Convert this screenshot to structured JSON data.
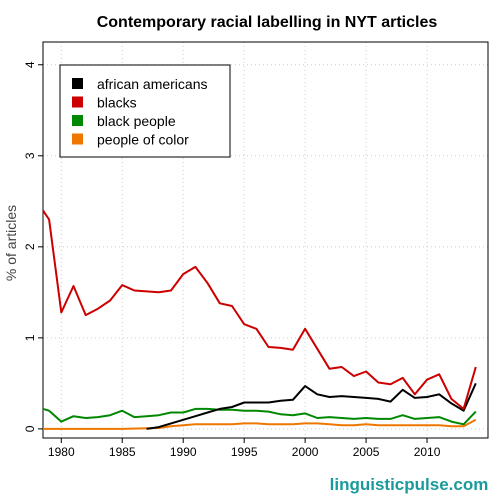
{
  "chart_data": {
    "type": "line",
    "title": "Contemporary racial labelling in NYT articles",
    "ylabel": "% of articles",
    "xlabel": "",
    "xlim": [
      1978.5,
      2015
    ],
    "ylim": [
      -0.1,
      4.25
    ],
    "x_ticks": [
      1980,
      1985,
      1990,
      1995,
      2000,
      2005,
      2010
    ],
    "y_ticks": [
      0,
      1,
      2,
      3,
      4
    ],
    "grid": true,
    "legend_position": "top-left",
    "series": [
      {
        "name": "african americans",
        "color": "#000000",
        "x": [
          1987,
          1988,
          1989,
          1990,
          1991,
          1992,
          1993,
          1994,
          1995,
          1996,
          1997,
          1998,
          1999,
          2000,
          2001,
          2002,
          2003,
          2004,
          2005,
          2006,
          2007,
          2008,
          2009,
          2010,
          2011,
          2012,
          2013,
          2014
        ],
        "y": [
          0.0,
          0.02,
          0.06,
          0.1,
          0.14,
          0.18,
          0.22,
          0.24,
          0.29,
          0.29,
          0.29,
          0.31,
          0.32,
          0.47,
          0.38,
          0.35,
          0.36,
          0.35,
          0.34,
          0.33,
          0.3,
          0.43,
          0.34,
          0.35,
          0.38,
          0.28,
          0.2,
          0.5
        ]
      },
      {
        "name": "blacks",
        "color": "#cc0000",
        "x": [
          1978.5,
          1979,
          1980,
          1981,
          1982,
          1983,
          1984,
          1985,
          1986,
          1987,
          1988,
          1989,
          1990,
          1991,
          1992,
          1993,
          1994,
          1995,
          1996,
          1997,
          1998,
          1999,
          2000,
          2001,
          2002,
          2003,
          2004,
          2005,
          2006,
          2007,
          2008,
          2009,
          2010,
          2011,
          2012,
          2013,
          2014
        ],
        "y": [
          2.4,
          2.3,
          1.28,
          1.57,
          1.25,
          1.32,
          1.41,
          1.58,
          1.52,
          1.51,
          1.5,
          1.52,
          1.7,
          1.78,
          1.6,
          1.38,
          1.35,
          1.15,
          1.1,
          0.9,
          0.89,
          0.87,
          1.1,
          0.88,
          0.66,
          0.68,
          0.58,
          0.63,
          0.51,
          0.49,
          0.56,
          0.38,
          0.54,
          0.6,
          0.33,
          0.22,
          0.68
        ]
      },
      {
        "name": "black people",
        "color": "#008800",
        "x": [
          1978.5,
          1979,
          1980,
          1981,
          1982,
          1983,
          1984,
          1985,
          1986,
          1987,
          1988,
          1989,
          1990,
          1991,
          1992,
          1993,
          1994,
          1995,
          1996,
          1997,
          1998,
          1999,
          2000,
          2001,
          2002,
          2003,
          2004,
          2005,
          2006,
          2007,
          2008,
          2009,
          2010,
          2011,
          2012,
          2013,
          2014
        ],
        "y": [
          0.22,
          0.2,
          0.08,
          0.14,
          0.12,
          0.13,
          0.15,
          0.2,
          0.13,
          0.14,
          0.15,
          0.18,
          0.18,
          0.22,
          0.22,
          0.21,
          0.21,
          0.2,
          0.2,
          0.19,
          0.16,
          0.15,
          0.17,
          0.12,
          0.13,
          0.12,
          0.11,
          0.12,
          0.11,
          0.11,
          0.15,
          0.11,
          0.12,
          0.13,
          0.08,
          0.05,
          0.19
        ]
      },
      {
        "name": "people of color",
        "color": "#ee7700",
        "x": [
          1978.5,
          1980,
          1985,
          1988,
          1989,
          1990,
          1991,
          1992,
          1993,
          1994,
          1995,
          1996,
          1997,
          1998,
          1999,
          2000,
          2001,
          2002,
          2003,
          2004,
          2005,
          2006,
          2007,
          2008,
          2009,
          2010,
          2011,
          2012,
          2013,
          2014
        ],
        "y": [
          0.0,
          0.0,
          0.0,
          0.01,
          0.03,
          0.04,
          0.05,
          0.05,
          0.05,
          0.05,
          0.06,
          0.06,
          0.05,
          0.05,
          0.05,
          0.06,
          0.06,
          0.05,
          0.04,
          0.04,
          0.05,
          0.04,
          0.04,
          0.04,
          0.04,
          0.04,
          0.04,
          0.03,
          0.03,
          0.1
        ]
      }
    ]
  },
  "watermark": "linguisticpulse.com"
}
